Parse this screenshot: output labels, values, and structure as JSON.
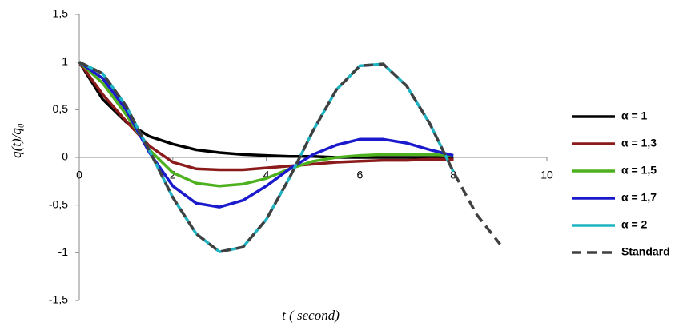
{
  "chart_data": {
    "type": "line",
    "xlabel": "t ( second)",
    "ylabel": "q(t)/q₀",
    "x": [
      0,
      0.5,
      1,
      1.5,
      2,
      2.5,
      3,
      3.5,
      4,
      4.5,
      5,
      5.5,
      6,
      6.5,
      7,
      7.5,
      8,
      8.5,
      9
    ],
    "series": [
      {
        "name": "α = 1",
        "color": "#000000",
        "values": [
          1,
          0.61,
          0.37,
          0.22,
          0.14,
          0.08,
          0.05,
          0.03,
          0.02,
          0.01,
          0.01,
          0,
          0,
          0,
          0,
          0,
          0,
          null,
          null
        ]
      },
      {
        "name": "α = 1,3",
        "color": "#8b1a1a",
        "values": [
          1,
          0.66,
          0.38,
          0.12,
          -0.05,
          -0.12,
          -0.13,
          -0.13,
          -0.11,
          -0.09,
          -0.07,
          -0.05,
          -0.04,
          -0.03,
          -0.03,
          -0.02,
          -0.02,
          null,
          null
        ]
      },
      {
        "name": "α = 1,5",
        "color": "#4db01e",
        "values": [
          1,
          0.78,
          0.45,
          0.08,
          -0.16,
          -0.27,
          -0.3,
          -0.28,
          -0.22,
          -0.12,
          -0.04,
          0,
          0.02,
          0.03,
          0.03,
          0.03,
          0.02,
          null,
          null
        ]
      },
      {
        "name": "α = 1,7",
        "color": "#1a1acc",
        "values": [
          1,
          0.83,
          0.5,
          0.05,
          -0.3,
          -0.48,
          -0.52,
          -0.45,
          -0.3,
          -0.12,
          0.03,
          0.13,
          0.19,
          0.19,
          0.15,
          0.08,
          0.02,
          null,
          null
        ]
      },
      {
        "name": "α = 2",
        "color": "#1fb3c2",
        "values": [
          1,
          0.88,
          0.54,
          0.07,
          -0.42,
          -0.8,
          -0.99,
          -0.94,
          -0.65,
          -0.21,
          0.28,
          0.71,
          0.96,
          0.98,
          0.75,
          0.35,
          -0.15,
          null,
          null
        ]
      },
      {
        "name": "Standard",
        "color": "#404040",
        "dashed": true,
        "values": [
          1,
          0.88,
          0.54,
          0.07,
          -0.42,
          -0.8,
          -0.99,
          -0.94,
          -0.65,
          -0.21,
          0.28,
          0.71,
          0.96,
          0.98,
          0.75,
          0.35,
          -0.15,
          -0.6,
          -0.91
        ]
      }
    ],
    "xlim": [
      0,
      10
    ],
    "xticks": [
      0,
      2,
      4,
      6,
      8,
      10
    ],
    "ylim": [
      -1.5,
      1.5
    ],
    "yticks": [
      {
        "value": -1.5,
        "label": "-1,5"
      },
      -1,
      {
        "value": -0.5,
        "label": "-0,5"
      },
      0,
      {
        "value": 0.5,
        "label": "0,5"
      },
      1,
      {
        "value": 1.5,
        "label": "1,5"
      }
    ],
    "legend": "right"
  }
}
